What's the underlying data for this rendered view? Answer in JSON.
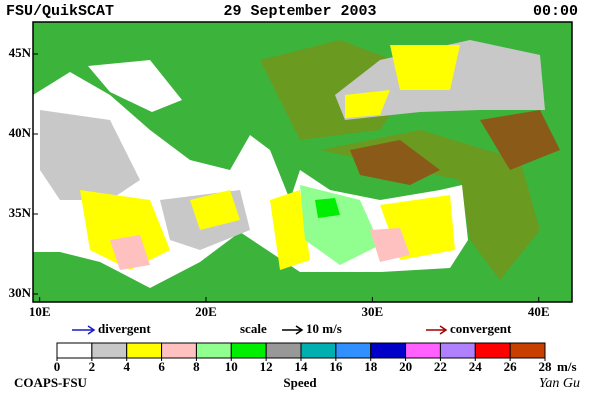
{
  "header": {
    "source": "FSU/QuikSCAT",
    "date": "29 September 2003",
    "time": "00:00"
  },
  "map": {
    "xlim": [
      9.6,
      42
    ],
    "ylim": [
      29.5,
      47
    ],
    "xticks": [
      {
        "value": 10,
        "label": "10E"
      },
      {
        "value": 20,
        "label": "20E"
      },
      {
        "value": 30,
        "label": "30E"
      },
      {
        "value": 40,
        "label": "40E"
      }
    ],
    "yticks": [
      {
        "value": 30,
        "label": "30N"
      },
      {
        "value": 35,
        "label": "35N"
      },
      {
        "value": 40,
        "label": "40N"
      },
      {
        "value": 45,
        "label": "45N"
      }
    ]
  },
  "legend": {
    "divergent": {
      "label": "divergent",
      "color": "#1a1ac8"
    },
    "scale": {
      "label": "scale",
      "value_label": "10 m/s"
    },
    "convergent": {
      "label": "convergent",
      "color": "#a00000"
    }
  },
  "colorbar": {
    "ticks": [
      0,
      2,
      4,
      6,
      8,
      10,
      12,
      14,
      16,
      18,
      20,
      22,
      24,
      26,
      28
    ],
    "colors": [
      "#ffffff",
      "#c8c8c8",
      "#ffff00",
      "#ffc0c0",
      "#90ff90",
      "#00ee00",
      "#989898",
      "#00b0b0",
      "#3090ff",
      "#0000c8",
      "#ff60ff",
      "#b080ff",
      "#ff0000",
      "#c84000"
    ],
    "unit": "m/s",
    "label": "Speed"
  },
  "footer": {
    "credit": "COAPS-FSU",
    "author": "Yan Gu"
  }
}
